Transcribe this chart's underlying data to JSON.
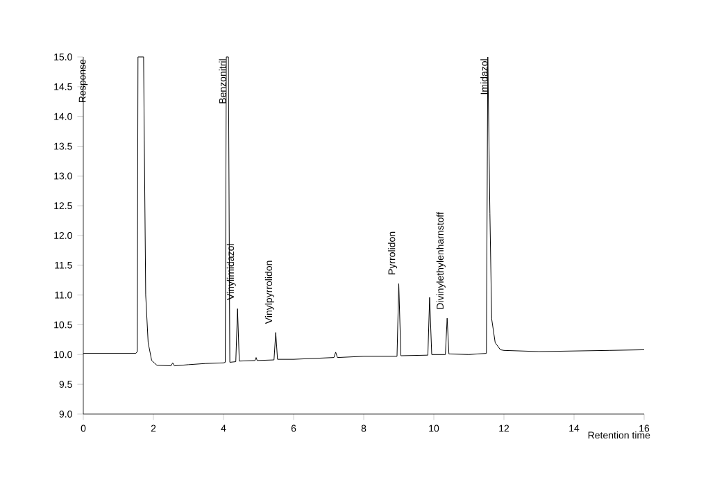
{
  "chart_data": {
    "type": "line",
    "xlabel": "Retention time",
    "ylabel": "Response",
    "xlim": [
      0,
      16
    ],
    "ylim": [
      9,
      15
    ],
    "xticks": [
      0,
      2,
      4,
      6,
      8,
      10,
      12,
      14,
      16
    ],
    "yticks": [
      {
        "value": 9,
        "label": "9.0"
      },
      {
        "value": 9.5,
        "label": "9.5"
      },
      {
        "value": 10,
        "label": "10.0"
      },
      {
        "value": 10.5,
        "label": "10.5"
      },
      {
        "value": 11,
        "label": "11.0"
      },
      {
        "value": 11.5,
        "label": "11.5"
      },
      {
        "value": 12,
        "label": "12.0"
      },
      {
        "value": 12.5,
        "label": "12.5"
      },
      {
        "value": 13,
        "label": "13.0"
      },
      {
        "value": 13.5,
        "label": "13.5"
      },
      {
        "value": 14,
        "label": "14.0"
      },
      {
        "value": 14.5,
        "label": "14.5"
      },
      {
        "value": 15,
        "label": "15.0"
      }
    ],
    "grid": false,
    "marker": "none",
    "line_style": "solid",
    "series": [
      {
        "color": "#000000",
        "x": [
          0,
          0.5,
          1.0,
          1.5,
          1.54,
          1.56,
          1.72,
          1.74,
          1.78,
          1.85,
          1.95,
          2.1,
          2.5,
          2.55,
          2.6,
          3.0,
          3.5,
          4.0,
          4.05,
          4.08,
          4.14,
          4.18,
          4.35,
          4.4,
          4.45,
          4.9,
          4.93,
          4.96,
          5.44,
          5.49,
          5.54,
          6.0,
          7.15,
          7.2,
          7.25,
          8.0,
          8.95,
          9.0,
          9.06,
          9.83,
          9.88,
          9.94,
          10.33,
          10.38,
          10.43,
          11.0,
          11.5,
          11.54,
          11.6,
          11.65,
          11.75,
          11.9,
          12.0,
          13.0,
          14.0,
          15.0,
          16.0
        ],
        "values": [
          10.02,
          10.02,
          10.02,
          10.02,
          10.05,
          15.0,
          15.0,
          13.6,
          11.0,
          10.2,
          9.9,
          9.82,
          9.81,
          9.86,
          9.81,
          9.83,
          9.85,
          9.86,
          9.87,
          15.0,
          15.0,
          9.87,
          9.88,
          10.77,
          9.89,
          9.9,
          9.95,
          9.9,
          9.91,
          10.37,
          9.92,
          9.92,
          9.95,
          10.04,
          9.95,
          9.97,
          9.97,
          11.19,
          9.98,
          9.99,
          10.96,
          10.0,
          10.0,
          10.61,
          10.01,
          10.0,
          10.02,
          15.0,
          12.37,
          10.6,
          10.2,
          10.08,
          10.07,
          10.05,
          10.06,
          10.07,
          10.08
        ]
      }
    ],
    "annotations": [
      {
        "text": "Benzonitril",
        "x": 4.08,
        "y": 15.0
      },
      {
        "text": "Vinylimidazol",
        "x": 4.4,
        "y": 10.77
      },
      {
        "text": "Vinylpyrrolidon",
        "x": 5.49,
        "y": 10.37
      },
      {
        "text": "Pyrrolidon",
        "x": 9.0,
        "y": 11.19
      },
      {
        "text": "Divinylethylenharnstoff",
        "x": 10.38,
        "y": 10.61
      },
      {
        "text": "Imidazol",
        "x": 11.54,
        "y": 15.0
      }
    ]
  }
}
